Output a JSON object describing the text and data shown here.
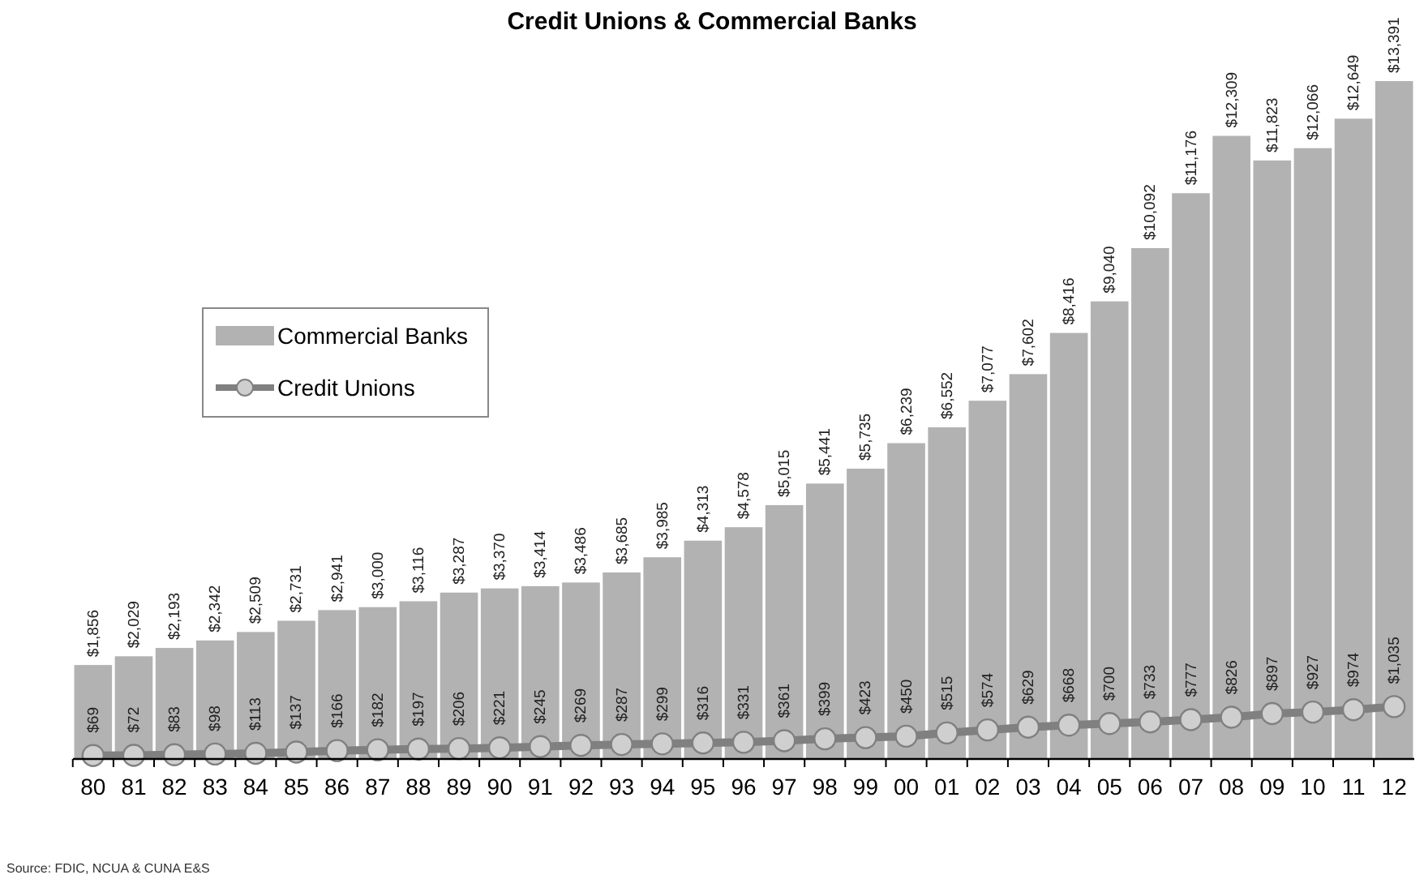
{
  "chart_data": {
    "type": "bar",
    "title": "Credit Unions & Commercial Banks",
    "categories": [
      "80",
      "81",
      "82",
      "83",
      "84",
      "85",
      "86",
      "87",
      "88",
      "89",
      "90",
      "91",
      "92",
      "93",
      "94",
      "95",
      "96",
      "97",
      "98",
      "99",
      "00",
      "01",
      "02",
      "03",
      "04",
      "05",
      "06",
      "07",
      "08",
      "09",
      "10",
      "11",
      "12"
    ],
    "series": [
      {
        "name": "Commercial Banks",
        "color": "#b2b2b2",
        "values": [
          1856,
          2029,
          2193,
          2342,
          2509,
          2731,
          2941,
          3000,
          3116,
          3287,
          3370,
          3414,
          3486,
          3685,
          3985,
          4313,
          4578,
          5015,
          5441,
          5735,
          6239,
          6552,
          7077,
          7602,
          8416,
          9040,
          10092,
          11176,
          12309,
          11823,
          12066,
          12649,
          13391
        ],
        "value_labels": [
          "$1,856",
          "$2,029",
          "$2,193",
          "$2,342",
          "$2,509",
          "$2,731",
          "$2,941",
          "$3,000",
          "$3,116",
          "$3,287",
          "$3,370",
          "$3,414",
          "$3,486",
          "$3,685",
          "$3,985",
          "$4,313",
          "$4,578",
          "$5,015",
          "$5,441",
          "$5,735",
          "$6,239",
          "$6,552",
          "$7,077",
          "$7,602",
          "$8,416",
          "$9,040",
          "$10,092",
          "$11,176",
          "$12,309",
          "$11,823",
          "$12,066",
          "$12,649",
          "$13,391"
        ]
      },
      {
        "name": "Credit Unions",
        "type": "line",
        "color": "#808080",
        "marker": "circle",
        "values": [
          69,
          72,
          83,
          98,
          113,
          137,
          166,
          182,
          197,
          206,
          221,
          245,
          269,
          287,
          299,
          316,
          331,
          361,
          399,
          423,
          450,
          515,
          574,
          629,
          668,
          700,
          733,
          777,
          826,
          897,
          927,
          974,
          1035
        ],
        "value_labels": [
          "$69",
          "$72",
          "$83",
          "$98",
          "$113",
          "$137",
          "$166",
          "$182",
          "$197",
          "$206",
          "$221",
          "$245",
          "$269",
          "$287",
          "$299",
          "$316",
          "$331",
          "$361",
          "$399",
          "$423",
          "$450",
          "$515",
          "$574",
          "$629",
          "$668",
          "$700",
          "$733",
          "$777",
          "$826",
          "$897",
          "$927",
          "$974",
          "$1,035"
        ]
      }
    ],
    "legend": "left",
    "annotations": [
      "Source: FDIC, NCUA & CUNA E&S"
    ]
  }
}
